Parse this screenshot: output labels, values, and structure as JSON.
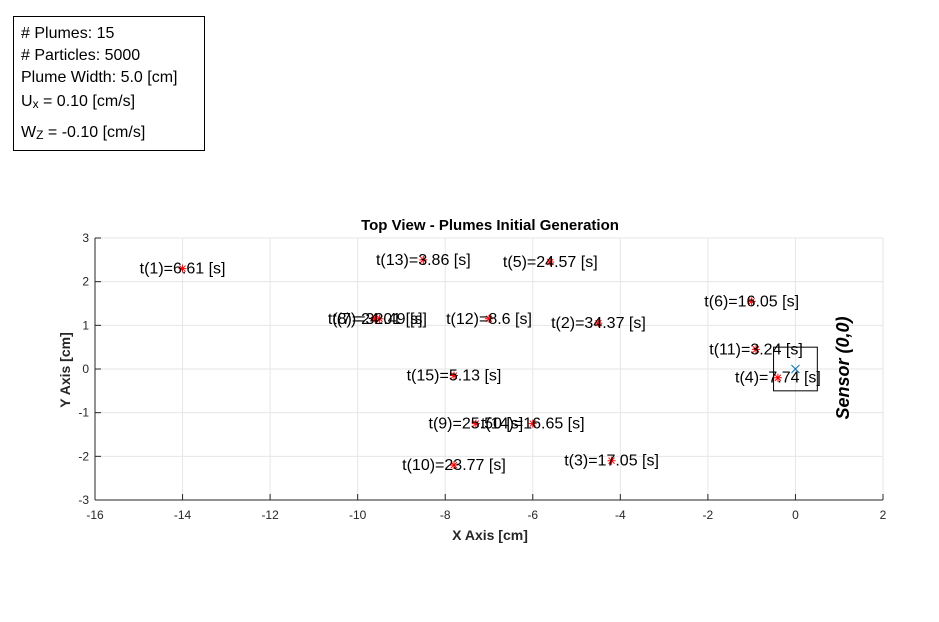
{
  "info": {
    "plumes": "# Plumes: 15",
    "particles": "# Particles: 5000",
    "width": "Plume Width: 5.0 [cm]",
    "ux_main": "U",
    "ux_sub": "x",
    "ux_val": " = 0.10 [cm/s]",
    "wz_main": "W",
    "wz_sub": "Z",
    "wz_val": " = -0.10 [cm/s]"
  },
  "chart_data": {
    "type": "scatter",
    "title": "Top View - Plumes Initial Generation",
    "xlabel": "X Axis [cm]",
    "ylabel": "Y Axis [cm]",
    "xlim": [
      -16,
      2
    ],
    "ylim": [
      -3,
      3
    ],
    "xticks": [
      -16,
      -14,
      -12,
      -10,
      -8,
      -6,
      -4,
      -2,
      0,
      2
    ],
    "yticks": [
      -3,
      -2,
      -1,
      0,
      1,
      2,
      3
    ],
    "grid": true,
    "marker_color": "#ff0000",
    "sensor": {
      "x": 0,
      "y": 0,
      "box": [
        -0.5,
        0.5,
        -0.5,
        0.5
      ],
      "label": "Sensor (0,0)",
      "marker_color": "#0072bd"
    },
    "points": [
      {
        "x": -14.0,
        "y": 2.3,
        "label": "t(1)=6.61 [s]"
      },
      {
        "x": -4.5,
        "y": 1.05,
        "label": "t(2)=34.37 [s]"
      },
      {
        "x": -4.2,
        "y": -2.1,
        "label": "t(3)=17.05 [s]"
      },
      {
        "x": -0.4,
        "y": -0.2,
        "label": "t(4)=7.74 [s]"
      },
      {
        "x": -5.6,
        "y": 2.45,
        "label": "t(5)=24.57 [s]"
      },
      {
        "x": -1.0,
        "y": 1.55,
        "label": "t(6)=16.05 [s]"
      },
      {
        "x": -9.5,
        "y": 1.15,
        "label": "t(7)=32.49 [s]"
      },
      {
        "x": -9.6,
        "y": 1.15,
        "label": "t(8)=24.01 [s]"
      },
      {
        "x": -7.3,
        "y": -1.25,
        "label": "t(9)=25.50 [s]"
      },
      {
        "x": -7.8,
        "y": -2.2,
        "label": "t(10)=23.77 [s]"
      },
      {
        "x": -0.9,
        "y": 0.45,
        "label": "t(11)=3.24 [s]"
      },
      {
        "x": -7.0,
        "y": 1.15,
        "label": "t(12)=8.6 [s]"
      },
      {
        "x": -8.5,
        "y": 2.5,
        "label": "t(13)=3.86 [s]"
      },
      {
        "x": -6.0,
        "y": -1.25,
        "label": "t(14)=16.65 [s]"
      },
      {
        "x": -7.8,
        "y": -0.15,
        "label": "t(15)=5.13 [s]"
      }
    ]
  }
}
